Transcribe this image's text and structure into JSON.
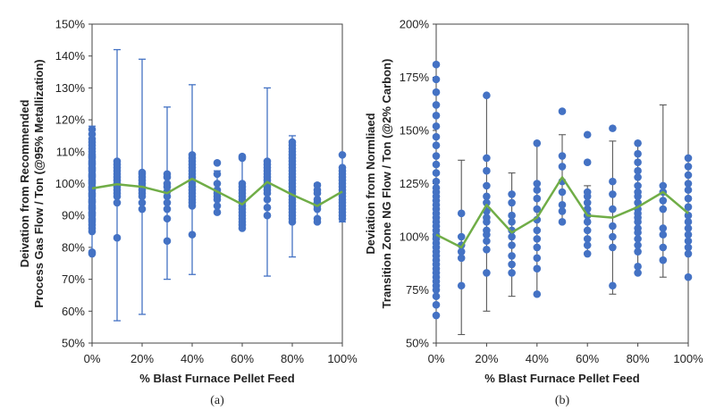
{
  "colors": {
    "points": "#4472C4",
    "mean_line": "#70AD47",
    "error_a": "#4472C4",
    "error_b": "#595959",
    "frame": "#444444"
  },
  "chart_data": [
    {
      "type": "scatter",
      "caption": "(a)",
      "xlabel": "% Blast Furnace Pellet Feed",
      "ylabel_lines": [
        "Deivation from Recommended",
        "Process Gas Flow / Ton (@95% Metallization)"
      ],
      "x_ticks": [
        "0%",
        "20%",
        "40%",
        "60%",
        "80%",
        "100%"
      ],
      "y_ticks": [
        "50%",
        "60%",
        "70%",
        "80%",
        "90%",
        "100%",
        "110%",
        "120%",
        "130%",
        "140%",
        "150%"
      ],
      "xlim": [
        0,
        100
      ],
      "ylim": [
        50,
        150
      ],
      "grid": false,
      "mean_line": {
        "x": [
          0,
          10,
          20,
          30,
          40,
          50,
          60,
          70,
          80,
          90,
          100
        ],
        "y": [
          98.5,
          99.8,
          99,
          97,
          101.5,
          97.5,
          93.5,
          100.5,
          96.5,
          93,
          97.5
        ]
      },
      "error_bars": [
        {
          "x": 0,
          "low": 78,
          "high": 118
        },
        {
          "x": 10,
          "low": 57,
          "high": 142
        },
        {
          "x": 20,
          "low": 59,
          "high": 139
        },
        {
          "x": 30,
          "low": 70,
          "high": 124
        },
        {
          "x": 40,
          "low": 71.5,
          "high": 131
        },
        {
          "x": 50,
          "low": 91,
          "high": 104
        },
        {
          "x": 60,
          "low": 87,
          "high": 108
        },
        {
          "x": 70,
          "low": 71,
          "high": 130
        },
        {
          "x": 80,
          "low": 77,
          "high": 115
        },
        {
          "x": 90,
          "low": 88,
          "high": 100
        },
        {
          "x": 100,
          "low": 88,
          "high": 109
        }
      ],
      "points": [
        {
          "x": 0,
          "y": [
            78,
            78.5,
            85,
            86,
            87,
            88,
            88.5,
            89,
            90,
            90.5,
            91,
            92,
            92.5,
            93,
            94,
            94.5,
            95,
            96,
            96.5,
            97,
            98,
            98.5,
            99,
            100,
            100.5,
            101,
            102,
            102.5,
            103,
            104,
            104.5,
            105,
            106,
            106.5,
            107,
            108,
            108.5,
            109,
            110,
            111,
            112,
            113,
            114,
            115.5,
            117
          ]
        },
        {
          "x": 10,
          "y": [
            83,
            94,
            96,
            97,
            98,
            99,
            100,
            101,
            102,
            103,
            104,
            105,
            106,
            107
          ]
        },
        {
          "x": 20,
          "y": [
            92,
            94,
            96,
            97,
            98,
            99,
            100,
            101,
            102,
            103,
            103.5
          ]
        },
        {
          "x": 30,
          "y": [
            82,
            89,
            92,
            94,
            96,
            97.5,
            99,
            100,
            102,
            103
          ]
        },
        {
          "x": 40,
          "y": [
            84,
            93,
            94,
            95,
            96,
            97,
            98,
            99,
            100,
            101,
            102,
            103,
            104,
            105,
            106,
            107,
            108,
            109
          ]
        },
        {
          "x": 50,
          "y": [
            91,
            93,
            95,
            96,
            97,
            98,
            100,
            103,
            106.5
          ]
        },
        {
          "x": 60,
          "y": [
            86,
            87,
            88,
            89,
            90,
            91,
            92,
            93,
            94,
            95,
            96,
            97,
            98,
            99,
            100,
            108,
            108.5
          ]
        },
        {
          "x": 70,
          "y": [
            90,
            92.5,
            95,
            97,
            98,
            99,
            100,
            101,
            102,
            103,
            104,
            105,
            106,
            107
          ]
        },
        {
          "x": 80,
          "y": [
            88,
            89,
            90,
            91,
            92,
            93,
            94,
            95,
            96,
            97,
            98,
            99,
            100,
            101,
            102,
            103,
            104,
            105,
            106,
            107,
            108,
            109,
            110,
            111,
            112,
            113
          ]
        },
        {
          "x": 90,
          "y": [
            88,
            89,
            92,
            93,
            94,
            95,
            97,
            98,
            99.5
          ]
        },
        {
          "x": 100,
          "y": [
            89,
            90,
            91,
            92,
            93,
            94,
            95,
            96,
            97,
            98,
            99,
            100,
            101,
            102,
            103,
            104,
            105,
            109
          ]
        }
      ]
    },
    {
      "type": "scatter",
      "caption": "(b)",
      "xlabel": "% Blast Furnace Pellet Feed",
      "ylabel_lines": [
        "Deviation from Normliaed",
        "Transition Zone NG Flow / Ton (@2% Carbon)"
      ],
      "x_ticks": [
        "0%",
        "20%",
        "40%",
        "60%",
        "80%",
        "100%"
      ],
      "y_ticks": [
        "50%",
        "75%",
        "100%",
        "125%",
        "150%",
        "175%",
        "200%"
      ],
      "xlim": [
        0,
        100
      ],
      "ylim": [
        50,
        200
      ],
      "grid": false,
      "mean_line": {
        "x": [
          0,
          10,
          20,
          30,
          40,
          50,
          60,
          70,
          80,
          90,
          100
        ],
        "y": [
          101,
          95,
          115,
          102,
          109,
          128,
          110,
          109,
          114,
          121,
          111
        ]
      },
      "error_bars": [
        {
          "x": 0,
          "low": 63,
          "high": 181
        },
        {
          "x": 10,
          "low": 54,
          "high": 136
        },
        {
          "x": 20,
          "low": 65,
          "high": 166
        },
        {
          "x": 30,
          "low": 72,
          "high": 130
        },
        {
          "x": 40,
          "low": 73,
          "high": 144
        },
        {
          "x": 50,
          "low": 107,
          "high": 148
        },
        {
          "x": 60,
          "low": 92,
          "high": 124
        },
        {
          "x": 70,
          "low": 73,
          "high": 145
        },
        {
          "x": 80,
          "low": 83,
          "high": 144
        },
        {
          "x": 90,
          "low": 81,
          "high": 162
        },
        {
          "x": 100,
          "low": 81,
          "high": 137
        }
      ],
      "points": [
        {
          "x": 0,
          "y": [
            63,
            68,
            72,
            75,
            77,
            79,
            81,
            83,
            85,
            87,
            89,
            91,
            93,
            95,
            97,
            99,
            101,
            103,
            105,
            107,
            109,
            111,
            113,
            115,
            117,
            119,
            121,
            123,
            126,
            130,
            134,
            138,
            143,
            147,
            152,
            157,
            162,
            168,
            174,
            181
          ]
        },
        {
          "x": 10,
          "y": [
            77,
            90,
            93,
            96,
            100,
            111
          ]
        },
        {
          "x": 20,
          "y": [
            83,
            94,
            98,
            101,
            103,
            107,
            109,
            112,
            116,
            119,
            124,
            131,
            137,
            166.5
          ]
        },
        {
          "x": 30,
          "y": [
            83,
            87,
            91,
            96,
            100,
            103,
            107,
            110,
            116,
            120
          ]
        },
        {
          "x": 40,
          "y": [
            73,
            85,
            90,
            95,
            99,
            103,
            108,
            113,
            118,
            122,
            125,
            144
          ]
        },
        {
          "x": 50,
          "y": [
            107,
            112,
            115,
            121,
            126,
            133,
            138,
            159
          ]
        },
        {
          "x": 60,
          "y": [
            92,
            96,
            99,
            103,
            107,
            110,
            113,
            116,
            119,
            121,
            135,
            148
          ]
        },
        {
          "x": 70,
          "y": [
            77,
            95,
            100,
            105,
            113,
            120,
            126,
            151
          ]
        },
        {
          "x": 80,
          "y": [
            83,
            86,
            93,
            96,
            99,
            102,
            104,
            107,
            109,
            111,
            113,
            116,
            119,
            121,
            124,
            128,
            131,
            135,
            139,
            144
          ]
        },
        {
          "x": 90,
          "y": [
            89,
            95,
            101,
            104,
            113,
            117,
            121,
            124
          ]
        },
        {
          "x": 100,
          "y": [
            81,
            92,
            95,
            98,
            101,
            104,
            107,
            110,
            114,
            118,
            122,
            125,
            129,
            133,
            137
          ]
        }
      ]
    }
  ]
}
